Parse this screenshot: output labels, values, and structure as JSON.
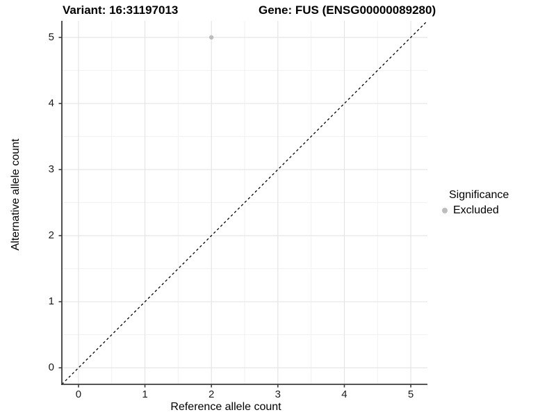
{
  "titles": {
    "variant": "Variant: 16:31197013",
    "gene": "Gene: FUS (ENSG00000089280)"
  },
  "chart_data": {
    "type": "scatter",
    "title_left": "Variant: 16:31197013",
    "title_right": "Gene: FUS (ENSG00000089280)",
    "xlabel": "Reference allele count",
    "ylabel": "Alternative allele count",
    "xlim": [
      -0.25,
      5.25
    ],
    "ylim": [
      -0.25,
      5.25
    ],
    "xticks": [
      0,
      1,
      2,
      3,
      4,
      5
    ],
    "yticks": [
      0,
      1,
      2,
      3,
      4,
      5
    ],
    "grid": "major and minor (0.5 steps)",
    "reference_line": {
      "type": "identity",
      "slope": 1,
      "intercept": 0,
      "style": "dashed"
    },
    "points": [
      {
        "x": 2,
        "y": 5,
        "series": "Excluded"
      }
    ],
    "legend": {
      "title": "Significance",
      "position": "right",
      "items": [
        {
          "label": "Excluded",
          "color": "#bdbdbd"
        }
      ]
    }
  },
  "colors": {
    "background": "#ffffff",
    "grid_major": "#e3e3e3",
    "grid_minor": "#f1f1f1",
    "axis_line": "#3d3d3d",
    "tick_mark": "#3d3d3d",
    "reference_line": "#000000",
    "point": "#bdbdbd",
    "text": "#000000"
  }
}
